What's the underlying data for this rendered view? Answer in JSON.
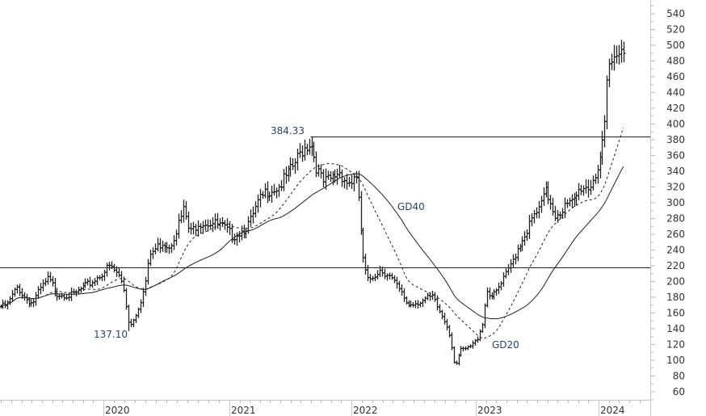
{
  "chart_data": {
    "type": "ohlc",
    "title": "",
    "xlabel": "",
    "ylabel": "",
    "ylim": [
      50,
      550
    ],
    "y_ticks": [
      "540",
      "520",
      "500",
      "480",
      "460",
      "440",
      "420",
      "400",
      "380",
      "360",
      "340",
      "320",
      "300",
      "280",
      "260",
      "240",
      "220",
      "200",
      "180",
      "160",
      "140",
      "120",
      "100",
      "80",
      "60"
    ],
    "x_ticks": [
      "2020",
      "2021",
      "2022",
      "2023",
      "2024"
    ],
    "grid": false,
    "y_axis_position": "right",
    "bar_color": "#222222",
    "period": "weekly",
    "price_path": [
      {
        "date": "2019-03-01",
        "close": 168
      },
      {
        "date": "2019-03-20",
        "close": 170
      },
      {
        "date": "2019-04-20",
        "close": 193
      },
      {
        "date": "2019-05-10",
        "close": 180
      },
      {
        "date": "2019-06-03",
        "close": 172
      },
      {
        "date": "2019-06-27",
        "close": 190
      },
      {
        "date": "2019-07-20",
        "close": 203
      },
      {
        "date": "2019-08-02",
        "close": 195
      },
      {
        "date": "2019-08-15",
        "close": 185
      },
      {
        "date": "2019-10-01",
        "close": 182
      },
      {
        "date": "2019-10-25",
        "close": 190
      },
      {
        "date": "2019-11-30",
        "close": 200
      },
      {
        "date": "2020-01-17",
        "close": 219
      },
      {
        "date": "2020-02-10",
        "close": 210
      },
      {
        "date": "2020-02-26",
        "close": 195
      },
      {
        "date": "2020-03-16",
        "close": 142
      },
      {
        "date": "2020-04-08",
        "close": 165
      },
      {
        "date": "2020-04-27",
        "close": 190
      },
      {
        "date": "2020-05-14",
        "close": 234
      },
      {
        "date": "2020-06-18",
        "close": 250
      },
      {
        "date": "2020-07-12",
        "close": 245
      },
      {
        "date": "2020-08-04",
        "close": 270
      },
      {
        "date": "2020-08-23",
        "close": 292
      },
      {
        "date": "2020-09-08",
        "close": 260
      },
      {
        "date": "2020-10-01",
        "close": 275
      },
      {
        "date": "2020-11-05",
        "close": 275
      },
      {
        "date": "2020-12-10",
        "close": 270
      },
      {
        "date": "2021-01-10",
        "close": 258
      },
      {
        "date": "2021-02-08",
        "close": 265
      },
      {
        "date": "2021-03-04",
        "close": 275
      },
      {
        "date": "2021-03-28",
        "close": 300
      },
      {
        "date": "2021-04-21",
        "close": 315
      },
      {
        "date": "2021-05-27",
        "close": 320
      },
      {
        "date": "2021-07-02",
        "close": 340
      },
      {
        "date": "2021-08-08",
        "close": 368
      },
      {
        "date": "2021-09-01",
        "close": 378
      },
      {
        "date": "2021-09-18",
        "close": 345
      },
      {
        "date": "2021-10-07",
        "close": 325
      },
      {
        "date": "2021-11-01",
        "close": 330
      },
      {
        "date": "2021-11-25",
        "close": 340
      },
      {
        "date": "2021-12-19",
        "close": 325
      },
      {
        "date": "2022-01-12",
        "close": 330
      },
      {
        "date": "2022-01-24",
        "close": 300
      },
      {
        "date": "2022-02-01",
        "close": 233
      },
      {
        "date": "2022-02-17",
        "close": 200
      },
      {
        "date": "2022-03-24",
        "close": 215
      },
      {
        "date": "2022-04-17",
        "close": 210
      },
      {
        "date": "2022-05-11",
        "close": 195
      },
      {
        "date": "2022-06-16",
        "close": 170
      },
      {
        "date": "2022-07-21",
        "close": 175
      },
      {
        "date": "2022-08-26",
        "close": 180
      },
      {
        "date": "2022-09-18",
        "close": 160
      },
      {
        "date": "2022-10-12",
        "close": 140
      },
      {
        "date": "2022-10-31",
        "close": 92
      },
      {
        "date": "2022-11-16",
        "close": 112
      },
      {
        "date": "2022-12-10",
        "close": 115
      },
      {
        "date": "2023-01-03",
        "close": 125
      },
      {
        "date": "2023-01-22",
        "close": 150
      },
      {
        "date": "2023-02-01",
        "close": 190
      },
      {
        "date": "2023-02-20",
        "close": 180
      },
      {
        "date": "2023-03-15",
        "close": 195
      },
      {
        "date": "2023-04-08",
        "close": 215
      },
      {
        "date": "2023-05-02",
        "close": 240
      },
      {
        "date": "2023-05-26",
        "close": 260
      },
      {
        "date": "2023-06-19",
        "close": 280
      },
      {
        "date": "2023-07-13",
        "close": 295
      },
      {
        "date": "2023-07-25",
        "close": 315
      },
      {
        "date": "2023-08-07",
        "close": 305
      },
      {
        "date": "2023-08-25",
        "close": 285
      },
      {
        "date": "2023-09-23",
        "close": 295
      },
      {
        "date": "2023-10-17",
        "close": 300
      },
      {
        "date": "2023-11-10",
        "close": 320
      },
      {
        "date": "2023-12-05",
        "close": 320
      },
      {
        "date": "2023-12-29",
        "close": 345
      },
      {
        "date": "2024-01-17",
        "close": 380
      },
      {
        "date": "2024-01-29",
        "close": 470
      },
      {
        "date": "2024-02-15",
        "close": 480
      },
      {
        "date": "2024-03-04",
        "close": 505
      },
      {
        "date": "2024-03-15",
        "close": 490
      }
    ],
    "extremes": {
      "high": {
        "date": "2021-09-01",
        "value": 384.33,
        "label": "384.33"
      },
      "low": {
        "date": "2020-03-16",
        "value": 137.1,
        "label": "137.10"
      }
    },
    "horizontal_lines": [
      {
        "value": 384.33,
        "from_date": "2021-09-01",
        "color": "#222222"
      },
      {
        "value": 218,
        "color": "#222222"
      }
    ],
    "moving_averages": [
      {
        "name": "GD20",
        "period": 20,
        "style": "dashed",
        "color": "#222222"
      },
      {
        "name": "GD40",
        "period": 40,
        "style": "solid",
        "color": "#222222"
      }
    ]
  }
}
